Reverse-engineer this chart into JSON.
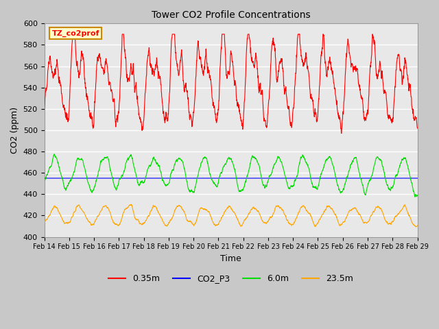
{
  "title": "Tower CO2 Profile Concentrations",
  "xlabel": "Time",
  "ylabel": "CO2 (ppm)",
  "ylim": [
    400,
    600
  ],
  "yticks": [
    400,
    420,
    440,
    460,
    480,
    500,
    520,
    540,
    560,
    580,
    600
  ],
  "x_labels": [
    "Feb 14",
    "Feb 15",
    "Feb 16",
    "Feb 17",
    "Feb 18",
    "Feb 19",
    "Feb 20",
    "Feb 21",
    "Feb 22",
    "Feb 23",
    "Feb 24",
    "Feb 25",
    "Feb 26",
    "Feb 27",
    "Feb 28",
    "Feb 29"
  ],
  "legend_label_box": "TZ_co2prof",
  "legend_box_color": "#ffffcc",
  "legend_box_edge_color": "#cc8800",
  "series": {
    "0.35m": {
      "color": "#ff0000",
      "linewidth": 0.8
    },
    "CO2_P3": {
      "color": "#0000ff",
      "linewidth": 0.8
    },
    "6.0m": {
      "color": "#00dd00",
      "linewidth": 0.8
    },
    "23.5m": {
      "color": "#ffa500",
      "linewidth": 0.8
    }
  },
  "plot_bg_color": "#e8e8e8",
  "grid_color": "#ffffff",
  "n_points": 2000,
  "seed": 42
}
